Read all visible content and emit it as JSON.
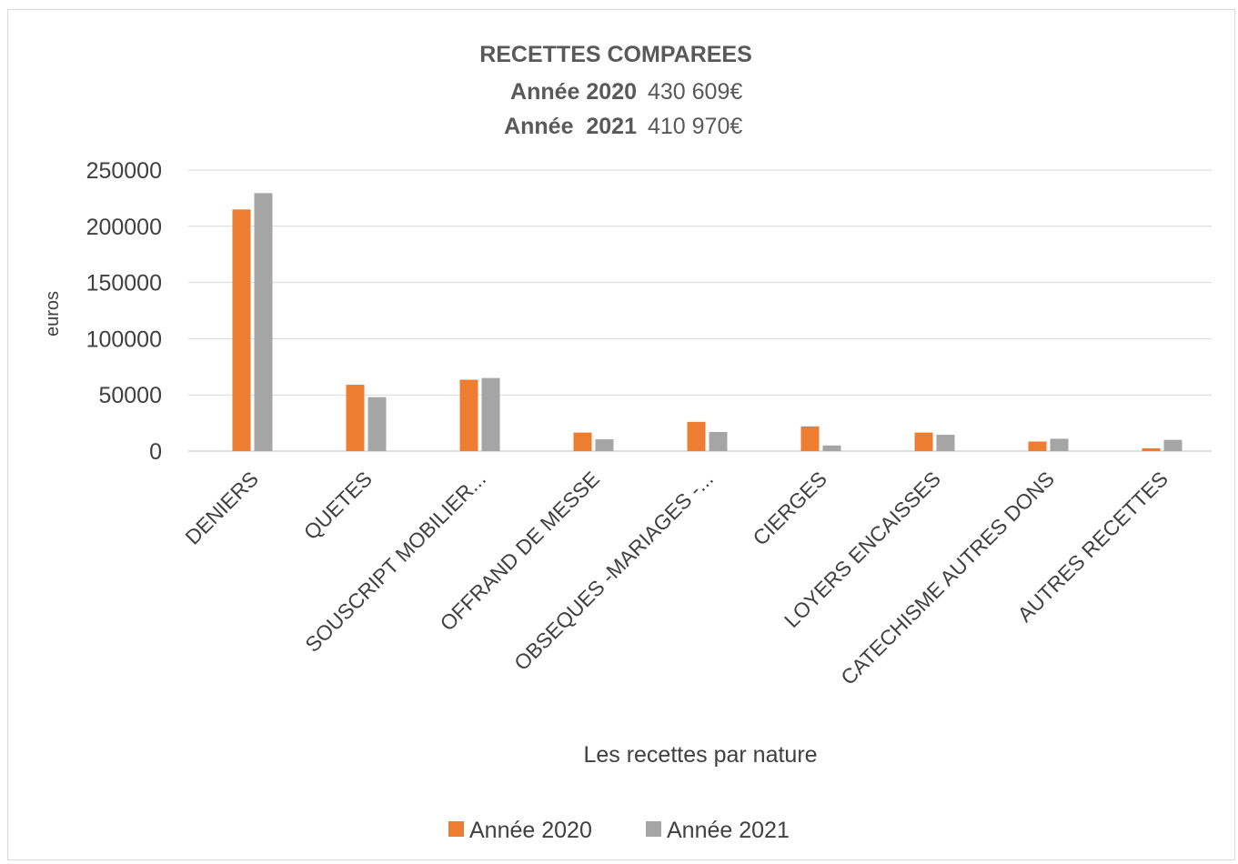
{
  "chart_data": {
    "type": "bar",
    "title": "RECETTES COMPAREES",
    "subtitle_lines": [
      {
        "label": "Année 2020",
        "value": "430 609€"
      },
      {
        "label": "Année  2021",
        "value": "410 970€"
      }
    ],
    "xlabel": "Les recettes par nature",
    "ylabel": "euros",
    "ylim": [
      0,
      250000
    ],
    "yticks": [
      "0",
      "50000",
      "100000",
      "150000",
      "200000",
      "250000"
    ],
    "grid": true,
    "legend_position": "bottom",
    "categories": [
      "DENIERS",
      "QUETES",
      "SOUSCRIPT MOBILIER...",
      "OFFRAND DE MESSE",
      "OBSEQUES -MARIAGES -...",
      "CIERGES",
      "LOYERS ENCAISSES",
      "CATECHISME AUTRES DONS",
      "AUTRES RECETTES"
    ],
    "series": [
      {
        "name": "Année 2020",
        "color": "#ed7d31",
        "values": [
          215000,
          59000,
          63500,
          16500,
          26000,
          22000,
          16500,
          8500,
          2500
        ]
      },
      {
        "name": "Année 2021",
        "color": "#a5a5a5",
        "values": [
          229500,
          48000,
          65000,
          10500,
          17000,
          5000,
          14500,
          11000,
          10000
        ]
      }
    ]
  }
}
